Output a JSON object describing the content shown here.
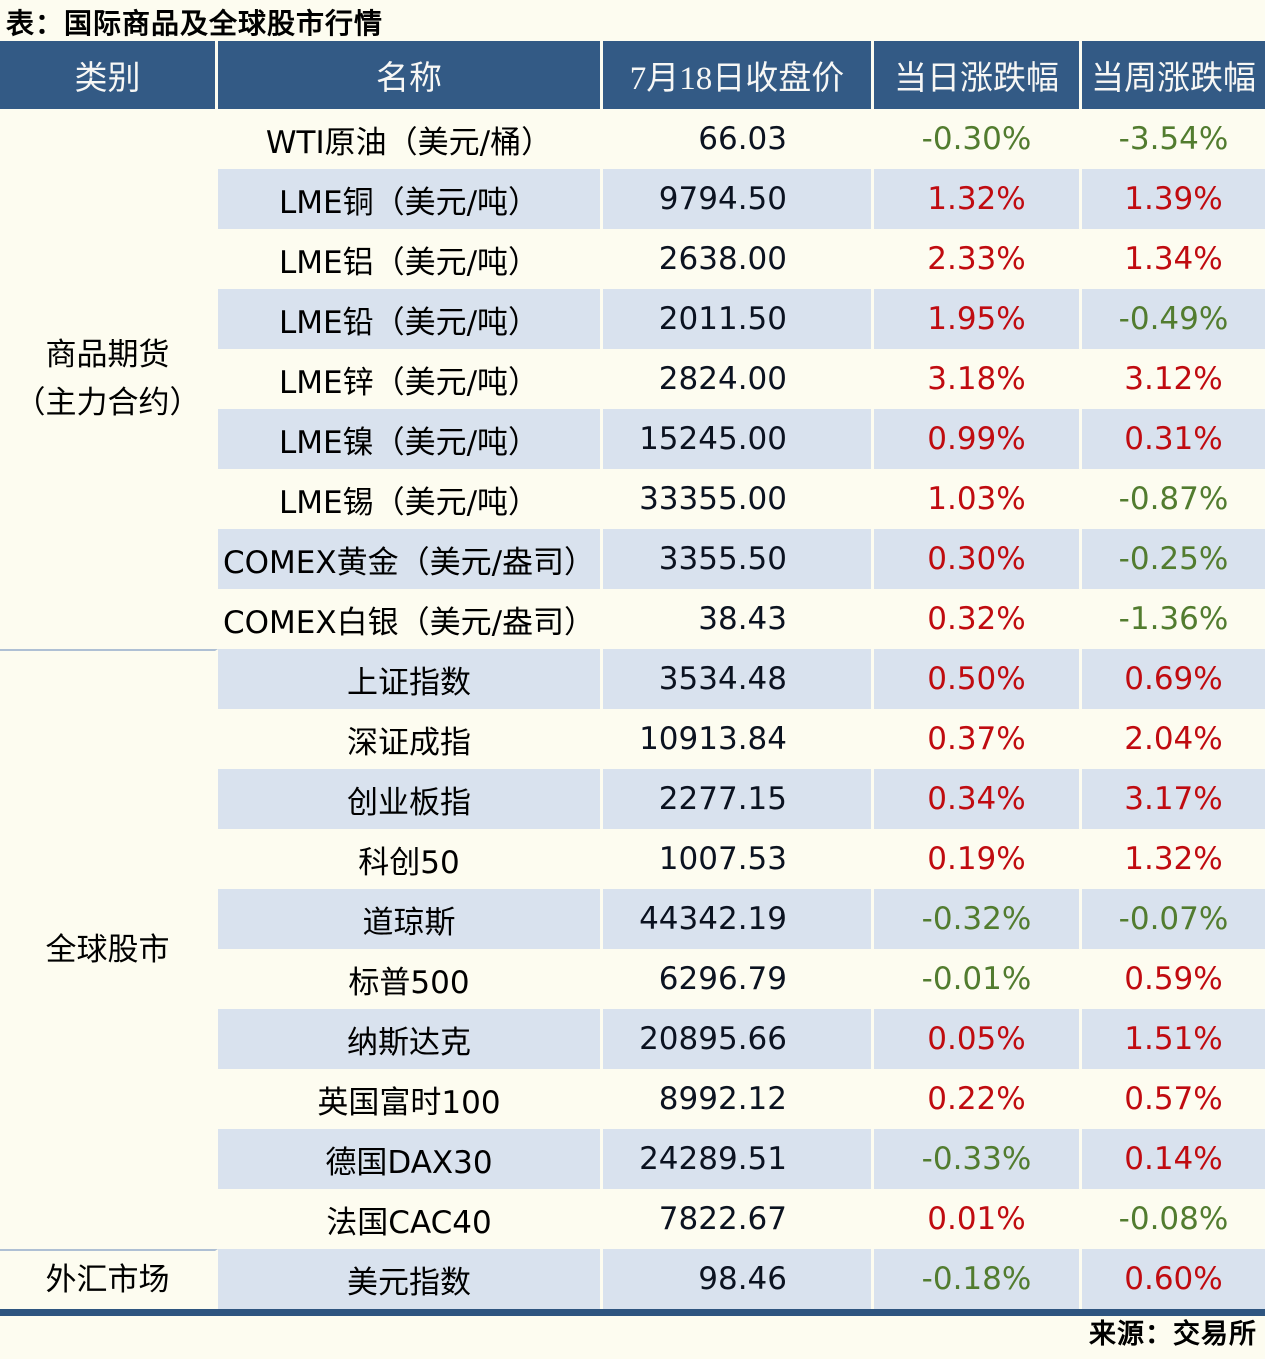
{
  "title": "表：国际商品及全球股市行情",
  "footer": {
    "source": "来源：交易所"
  },
  "colors": {
    "header_bg": "#335A85",
    "row_alt_bg": "#D9E2EE",
    "page_bg": "#FDFCF0",
    "up_red": "#C00B10",
    "down_green": "#527C2F",
    "bottom_rule": "#2E5580"
  },
  "chart_data": {
    "type": "table",
    "columns": [
      "类别",
      "名称",
      "7月18日收盘价",
      "当日涨跌幅",
      "当周涨跌幅"
    ],
    "sections": [
      {
        "category": "商品期货\n（主力合约）",
        "rows": [
          {
            "name": "WTI原油（美元/桶）",
            "close": "66.03",
            "day": "-0.30%",
            "week": "-3.54%"
          },
          {
            "name": "LME铜（美元/吨）",
            "close": "9794.50",
            "day": "1.32%",
            "week": "1.39%"
          },
          {
            "name": "LME铝（美元/吨）",
            "close": "2638.00",
            "day": "2.33%",
            "week": "1.34%"
          },
          {
            "name": "LME铅（美元/吨）",
            "close": "2011.50",
            "day": "1.95%",
            "week": "-0.49%"
          },
          {
            "name": "LME锌（美元/吨）",
            "close": "2824.00",
            "day": "3.18%",
            "week": "3.12%"
          },
          {
            "name": "LME镍（美元/吨）",
            "close": "15245.00",
            "day": "0.99%",
            "week": "0.31%"
          },
          {
            "name": "LME锡（美元/吨）",
            "close": "33355.00",
            "day": "1.03%",
            "week": "-0.87%"
          },
          {
            "name": "COMEX黄金（美元/盎司）",
            "close": "3355.50",
            "day": "0.30%",
            "week": "-0.25%"
          },
          {
            "name": "COMEX白银（美元/盎司）",
            "close": "38.43",
            "day": "0.32%",
            "week": "-1.36%"
          }
        ]
      },
      {
        "category": "全球股市",
        "rows": [
          {
            "name": "上证指数",
            "close": "3534.48",
            "day": "0.50%",
            "week": "0.69%"
          },
          {
            "name": "深证成指",
            "close": "10913.84",
            "day": "0.37%",
            "week": "2.04%"
          },
          {
            "name": "创业板指",
            "close": "2277.15",
            "day": "0.34%",
            "week": "3.17%"
          },
          {
            "name": "科创50",
            "close": "1007.53",
            "day": "0.19%",
            "week": "1.32%"
          },
          {
            "name": "道琼斯",
            "close": "44342.19",
            "day": "-0.32%",
            "week": "-0.07%"
          },
          {
            "name": "标普500",
            "close": "6296.79",
            "day": "-0.01%",
            "week": "0.59%"
          },
          {
            "name": "纳斯达克",
            "close": "20895.66",
            "day": "0.05%",
            "week": "1.51%"
          },
          {
            "name": "英国富时100",
            "close": "8992.12",
            "day": "0.22%",
            "week": "0.57%"
          },
          {
            "name": "德国DAX30",
            "close": "24289.51",
            "day": "-0.33%",
            "week": "0.14%"
          },
          {
            "name": "法国CAC40",
            "close": "7822.67",
            "day": "0.01%",
            "week": "-0.08%"
          }
        ]
      },
      {
        "category": "外汇市场",
        "rows": [
          {
            "name": "美元指数",
            "close": "98.46",
            "day": "-0.18%",
            "week": "0.60%"
          }
        ]
      }
    ]
  }
}
